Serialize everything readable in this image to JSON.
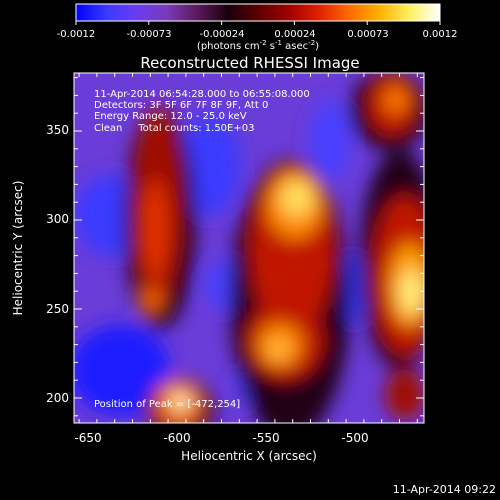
{
  "colorbar": {
    "ticks": [
      "-0.0012",
      "-0.00073",
      "-0.00024",
      "0.00024",
      "0.00073",
      "0.0012"
    ],
    "unit_label": "(photons cm",
    "unit_exp1": "-2",
    "unit_mid1": " s",
    "unit_exp2": "-1",
    "unit_mid2": " asec",
    "unit_exp3": "-2",
    "unit_close": ")",
    "colors": [
      "#0000ff",
      "#3a3aff",
      "#6a3cf0",
      "#7a3ab8",
      "#5a1a5a",
      "#1a0010",
      "#5a0000",
      "#a00000",
      "#e02000",
      "#ff6a00",
      "#ffb000",
      "#fff060",
      "#ffffff"
    ]
  },
  "plot": {
    "title": "Reconstructed RHESSI Image",
    "xlabel": "Heliocentric X (arcsec)",
    "ylabel": "Heliocentric Y (arcsec)",
    "x_ticks": [
      "-650",
      "-600",
      "-550",
      "-500"
    ],
    "y_ticks": [
      "200",
      "250",
      "300",
      "350"
    ],
    "annotations": {
      "time_range": "11-Apr-2014 06:54:28.000 to 06:55:08.000",
      "detectors": "Detectors: 3F 5F 6F 7F 8F 9F, Att 0",
      "energy": "Energy Range: 12.0 - 25.0 keV",
      "clean": "Clean     Total counts: 1.50E+03",
      "peak": "Position of Peak = [-472,254]"
    }
  },
  "footer": {
    "timestamp": "11-Apr-2014 09:22"
  }
}
